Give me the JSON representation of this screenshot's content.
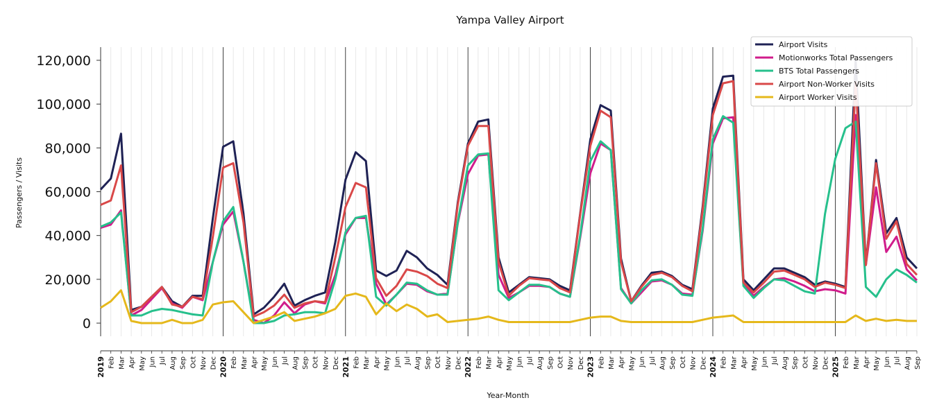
{
  "chart_data": {
    "type": "line",
    "title": "Yampa Valley Airport",
    "xlabel": "Year-Month",
    "ylabel": "Passengers / Visits",
    "ylim": [
      -6000,
      126000
    ],
    "yticks": [
      0,
      20000,
      40000,
      60000,
      80000,
      100000,
      120000
    ],
    "ytick_labels": [
      "0",
      "20,000",
      "40,000",
      "60,000",
      "80,000",
      "100,000",
      "120,000"
    ],
    "years": [
      "2019",
      "2020",
      "2021",
      "2022",
      "2023",
      "2024",
      "2025"
    ],
    "month_labels": [
      "Feb",
      "Mar",
      "Apr",
      "May",
      "Jun",
      "Jul",
      "Aug",
      "Sep",
      "Oct",
      "Nov",
      "Dec"
    ],
    "start": "2019-01",
    "end": "2025-09",
    "grid": "vertical monthly lines, year separators",
    "legend_position": "top-right",
    "series": [
      {
        "name": "Airport Visits",
        "color": "#1f2255",
        "values": [
          61000,
          66000,
          86500,
          6000,
          7500,
          12000,
          16500,
          10000,
          7500,
          12500,
          12500,
          48000,
          80500,
          83000,
          50000,
          4000,
          7000,
          12000,
          18000,
          8000,
          10500,
          12500,
          14000,
          37000,
          65500,
          78000,
          74000,
          24000,
          21500,
          24000,
          33000,
          30000,
          25000,
          22000,
          17500,
          55000,
          82000,
          92000,
          93000,
          30000,
          14000,
          17500,
          21000,
          20500,
          20000,
          17000,
          15000,
          50000,
          84000,
          99500,
          97000,
          29500,
          10000,
          17000,
          23000,
          23500,
          21500,
          17500,
          15500,
          53000,
          98000,
          112500,
          113000,
          20000,
          15000,
          20000,
          25000,
          25000,
          23000,
          21000,
          17500,
          19000,
          18000,
          16500,
          120000,
          27000,
          74500,
          41000,
          48000,
          30000,
          25000
        ]
      },
      {
        "name": "Motionworks Total Passengers",
        "color": "#d01c8b",
        "values": [
          43500,
          45000,
          51500,
          3500,
          6000,
          11000,
          16000,
          9000,
          7000,
          12000,
          10500,
          28000,
          45000,
          51000,
          28000,
          1500,
          0,
          3500,
          9500,
          4500,
          8500,
          10000,
          9000,
          22000,
          40500,
          48000,
          48000,
          18000,
          8500,
          13000,
          18000,
          17500,
          14500,
          13000,
          13500,
          45500,
          68000,
          76500,
          77000,
          22000,
          11500,
          14000,
          17000,
          17000,
          16500,
          13500,
          12000,
          39000,
          68500,
          82000,
          79000,
          16000,
          9000,
          14000,
          19000,
          19500,
          17500,
          13500,
          13000,
          42000,
          82000,
          93500,
          94000,
          18000,
          12500,
          16500,
          20000,
          20500,
          19000,
          17000,
          14500,
          15500,
          15000,
          13500,
          95000,
          26500,
          62000,
          32500,
          39500,
          24500,
          19500
        ]
      },
      {
        "name": "BTS Total Passengers",
        "color": "#26c08c",
        "values": [
          44000,
          46000,
          50500,
          3500,
          3500,
          5500,
          6500,
          6000,
          5000,
          4000,
          3500,
          28000,
          46500,
          53000,
          28000,
          0,
          0,
          1000,
          3500,
          4000,
          5000,
          5000,
          4500,
          20000,
          41500,
          48000,
          49000,
          12000,
          8000,
          13000,
          18500,
          18000,
          15000,
          13000,
          13000,
          46000,
          72000,
          77000,
          77500,
          15000,
          10500,
          14000,
          17500,
          17500,
          16500,
          13500,
          12000,
          40000,
          74000,
          83000,
          79000,
          15500,
          9000,
          15000,
          19500,
          20000,
          17500,
          13000,
          12500,
          43000,
          84000,
          94500,
          91500,
          17000,
          11500,
          16000,
          20000,
          19500,
          17000,
          14500,
          13500,
          50000,
          75000,
          89000,
          92000,
          16500,
          12000,
          20000,
          24500,
          22000,
          18500
        ]
      },
      {
        "name": "Airport Non-Worker Visits",
        "color": "#d94848",
        "values": [
          54000,
          56000,
          72000,
          5000,
          7500,
          12000,
          16500,
          8500,
          7500,
          12000,
          11000,
          39500,
          71000,
          73000,
          46000,
          3000,
          5000,
          8000,
          13000,
          7000,
          9000,
          10000,
          9500,
          30000,
          53000,
          64000,
          62000,
          20500,
          12500,
          17000,
          24500,
          23500,
          21500,
          18000,
          16000,
          54000,
          81000,
          90000,
          90000,
          28000,
          12500,
          17000,
          20500,
          20000,
          19500,
          16000,
          14000,
          49500,
          81000,
          97000,
          94000,
          28000,
          10000,
          16500,
          22000,
          23000,
          21000,
          17000,
          14500,
          51500,
          95000,
          109500,
          110500,
          18500,
          14000,
          18500,
          23500,
          24000,
          22000,
          20000,
          16500,
          18500,
          17500,
          16000,
          110000,
          26500,
          73000,
          38500,
          46500,
          27000,
          22000
        ]
      },
      {
        "name": "Airport Worker Visits",
        "color": "#e5b81b",
        "values": [
          7000,
          10000,
          15000,
          1000,
          0,
          0,
          0,
          1500,
          0,
          0,
          1500,
          8500,
          9500,
          10000,
          5000,
          0,
          1500,
          3000,
          5000,
          1000,
          2000,
          3000,
          4500,
          6500,
          12500,
          13500,
          12000,
          4000,
          9000,
          5500,
          8500,
          6500,
          3000,
          4000,
          500,
          1000,
          1500,
          2000,
          3000,
          1500,
          500,
          500,
          500,
          500,
          500,
          500,
          500,
          1500,
          2500,
          3000,
          3000,
          1000,
          500,
          500,
          500,
          500,
          500,
          500,
          500,
          1500,
          2500,
          3000,
          3500,
          500,
          500,
          500,
          500,
          500,
          500,
          500,
          500,
          500,
          500,
          500,
          3500,
          1000,
          2000,
          1000,
          1500,
          1000,
          1000
        ]
      }
    ]
  }
}
